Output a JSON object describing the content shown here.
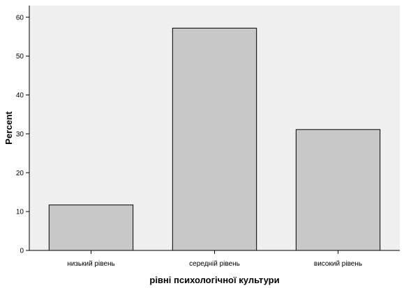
{
  "chart_data": {
    "type": "bar",
    "title": "",
    "xlabel": "рівні психологічної культури",
    "ylabel": "Percent",
    "categories": [
      "низький рівень",
      "середній рівень",
      "високий рівень"
    ],
    "values": [
      11.7,
      57.2,
      31.1
    ],
    "ylim": [
      0,
      63
    ],
    "yticks": [
      0,
      10,
      20,
      30,
      40,
      50,
      60
    ],
    "grid": false,
    "legend": "none",
    "colors": {
      "bar_fill": "#c8c8c8",
      "bar_stroke": "#000000",
      "plot_background": "#f0f0f0",
      "axis": "#000000"
    }
  }
}
